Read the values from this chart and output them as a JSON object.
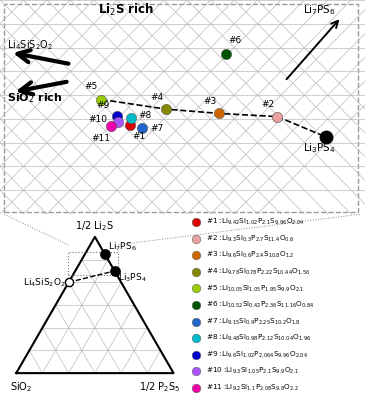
{
  "fig_width": 3.65,
  "fig_height": 4.0,
  "dpi": 100,
  "bg_color": "#ffffff",
  "grid_color": "#bbbbbb",
  "samples": [
    {
      "id": 1,
      "color": "#dd0000",
      "ux": 0.355,
      "uy": 0.415,
      "label": "#1 :Li$_{9.42}$Si$_{1.02}$P$_{2.1}$S$_{9.96}$O$_{2.04}$"
    },
    {
      "id": 2,
      "color": "#e8a0a0",
      "ux": 0.76,
      "uy": 0.455,
      "label": "#2 :Li$_{9.3}$Si$_{0.3}$P$_{2.7}$S$_{11.4}$O$_{0.6}$"
    },
    {
      "id": 3,
      "color": "#cc6600",
      "ux": 0.6,
      "uy": 0.47,
      "label": "#3 :Li$_{9.6}$Si$_{0.6}$P$_{2.4}$S$_{10.8}$O$_{1.2}$"
    },
    {
      "id": 4,
      "color": "#888800",
      "ux": 0.455,
      "uy": 0.49,
      "label": "#4 :Li$_{9.78}$Si$_{0.78}$P$_{2.22}$S$_{10.44}$O$_{1.56}$"
    },
    {
      "id": 5,
      "color": "#99cc00",
      "ux": 0.278,
      "uy": 0.535,
      "label": "#5 :Li$_{10.05}$Si$_{1.05}$P$_{1.95}$S$_{9.9}$O$_{2.1}$"
    },
    {
      "id": 6,
      "color": "#005500",
      "ux": 0.618,
      "uy": 0.75,
      "label": "#6 :Li$_{10.52}$Si$_{0.42}$P$_{2.36}$S$_{11.16}$O$_{0.84}$"
    },
    {
      "id": 7,
      "color": "#2266cc",
      "ux": 0.39,
      "uy": 0.4,
      "label": "#7 :Li$_{9.15}$Si$_{0.9}$P$_{2.25}$S$_{10.2}$O$_{1.8}$"
    },
    {
      "id": 8,
      "color": "#00bbcc",
      "ux": 0.358,
      "uy": 0.45,
      "label": "#8 :Li$_{9.48}$Si$_{0.98}$P$_{2.12}$S$_{10.04}$O$_{1.96}$"
    },
    {
      "id": 9,
      "color": "#0000cc",
      "ux": 0.32,
      "uy": 0.458,
      "label": "#9 :Li$_{9.6}$Si$_{1.02}$P$_{2.064}$S$_{9.96}$O$_{2.04}$"
    },
    {
      "id": 10,
      "color": "#aa55ff",
      "ux": 0.323,
      "uy": 0.432,
      "label": "#10:Li$_{9.3}$Si$_{1.05}$P$_{2.1}$S$_{9.9}$O$_{2.1}$"
    },
    {
      "id": 11,
      "color": "#ee00aa",
      "ux": 0.305,
      "uy": 0.41,
      "label": "#11:Li$_{9.2}$Si$_{1.1}$P$_{2.08}$S$_{9.8}$O$_{2.2}$"
    }
  ],
  "legend_items": [
    {
      "num": "#1",
      "color": "#dd0000",
      "formula": "Li$_{9.42}$Si$_{1.02}$P$_{2.1}$S$_{9.96}$O$_{2.04}$"
    },
    {
      "num": "#2",
      "color": "#e8a0a0",
      "formula": "Li$_{9.3}$Si$_{0.3}$P$_{2.7}$S$_{11.4}$O$_{0.6}$"
    },
    {
      "num": "#3",
      "color": "#cc6600",
      "formula": "Li$_{9.6}$Si$_{0.6}$P$_{2.4}$S$_{10.8}$O$_{1.2}$"
    },
    {
      "num": "#4",
      "color": "#888800",
      "formula": "Li$_{9.78}$Si$_{0.78}$P$_{2.22}$S$_{10.44}$O$_{1.56}$"
    },
    {
      "num": "#5",
      "color": "#99cc00",
      "formula": "Li$_{10.05}$Si$_{1.05}$P$_{1.95}$S$_{9.9}$O$_{2.1}$"
    },
    {
      "num": "#6",
      "color": "#005500",
      "formula": "Li$_{10.52}$Si$_{0.42}$P$_{2.36}$S$_{11.16}$O$_{0.84}$"
    },
    {
      "num": "#7",
      "color": "#2266cc",
      "formula": "Li$_{9.15}$Si$_{0.9}$P$_{2.25}$S$_{10.2}$O$_{1.8}$"
    },
    {
      "num": "#8",
      "color": "#00bbcc",
      "formula": "Li$_{9.48}$Si$_{0.98}$P$_{2.12}$S$_{10.04}$O$_{1.96}$"
    },
    {
      "num": "#9",
      "color": "#0000cc",
      "formula": "Li$_{9.6}$Si$_{1.02}$P$_{2.064}$S$_{9.96}$O$_{2.04}$"
    },
    {
      "num": "#10",
      "color": "#aa55ff",
      "formula": "Li$_{9.3}$Si$_{1.05}$P$_{2.1}$S$_{9.9}$O$_{2.1}$"
    },
    {
      "num": "#11",
      "color": "#ee00aa",
      "formula": "Li$_{9.2}$Si$_{1.1}$P$_{2.08}$S$_{9.8}$O$_{2.2}$"
    }
  ]
}
